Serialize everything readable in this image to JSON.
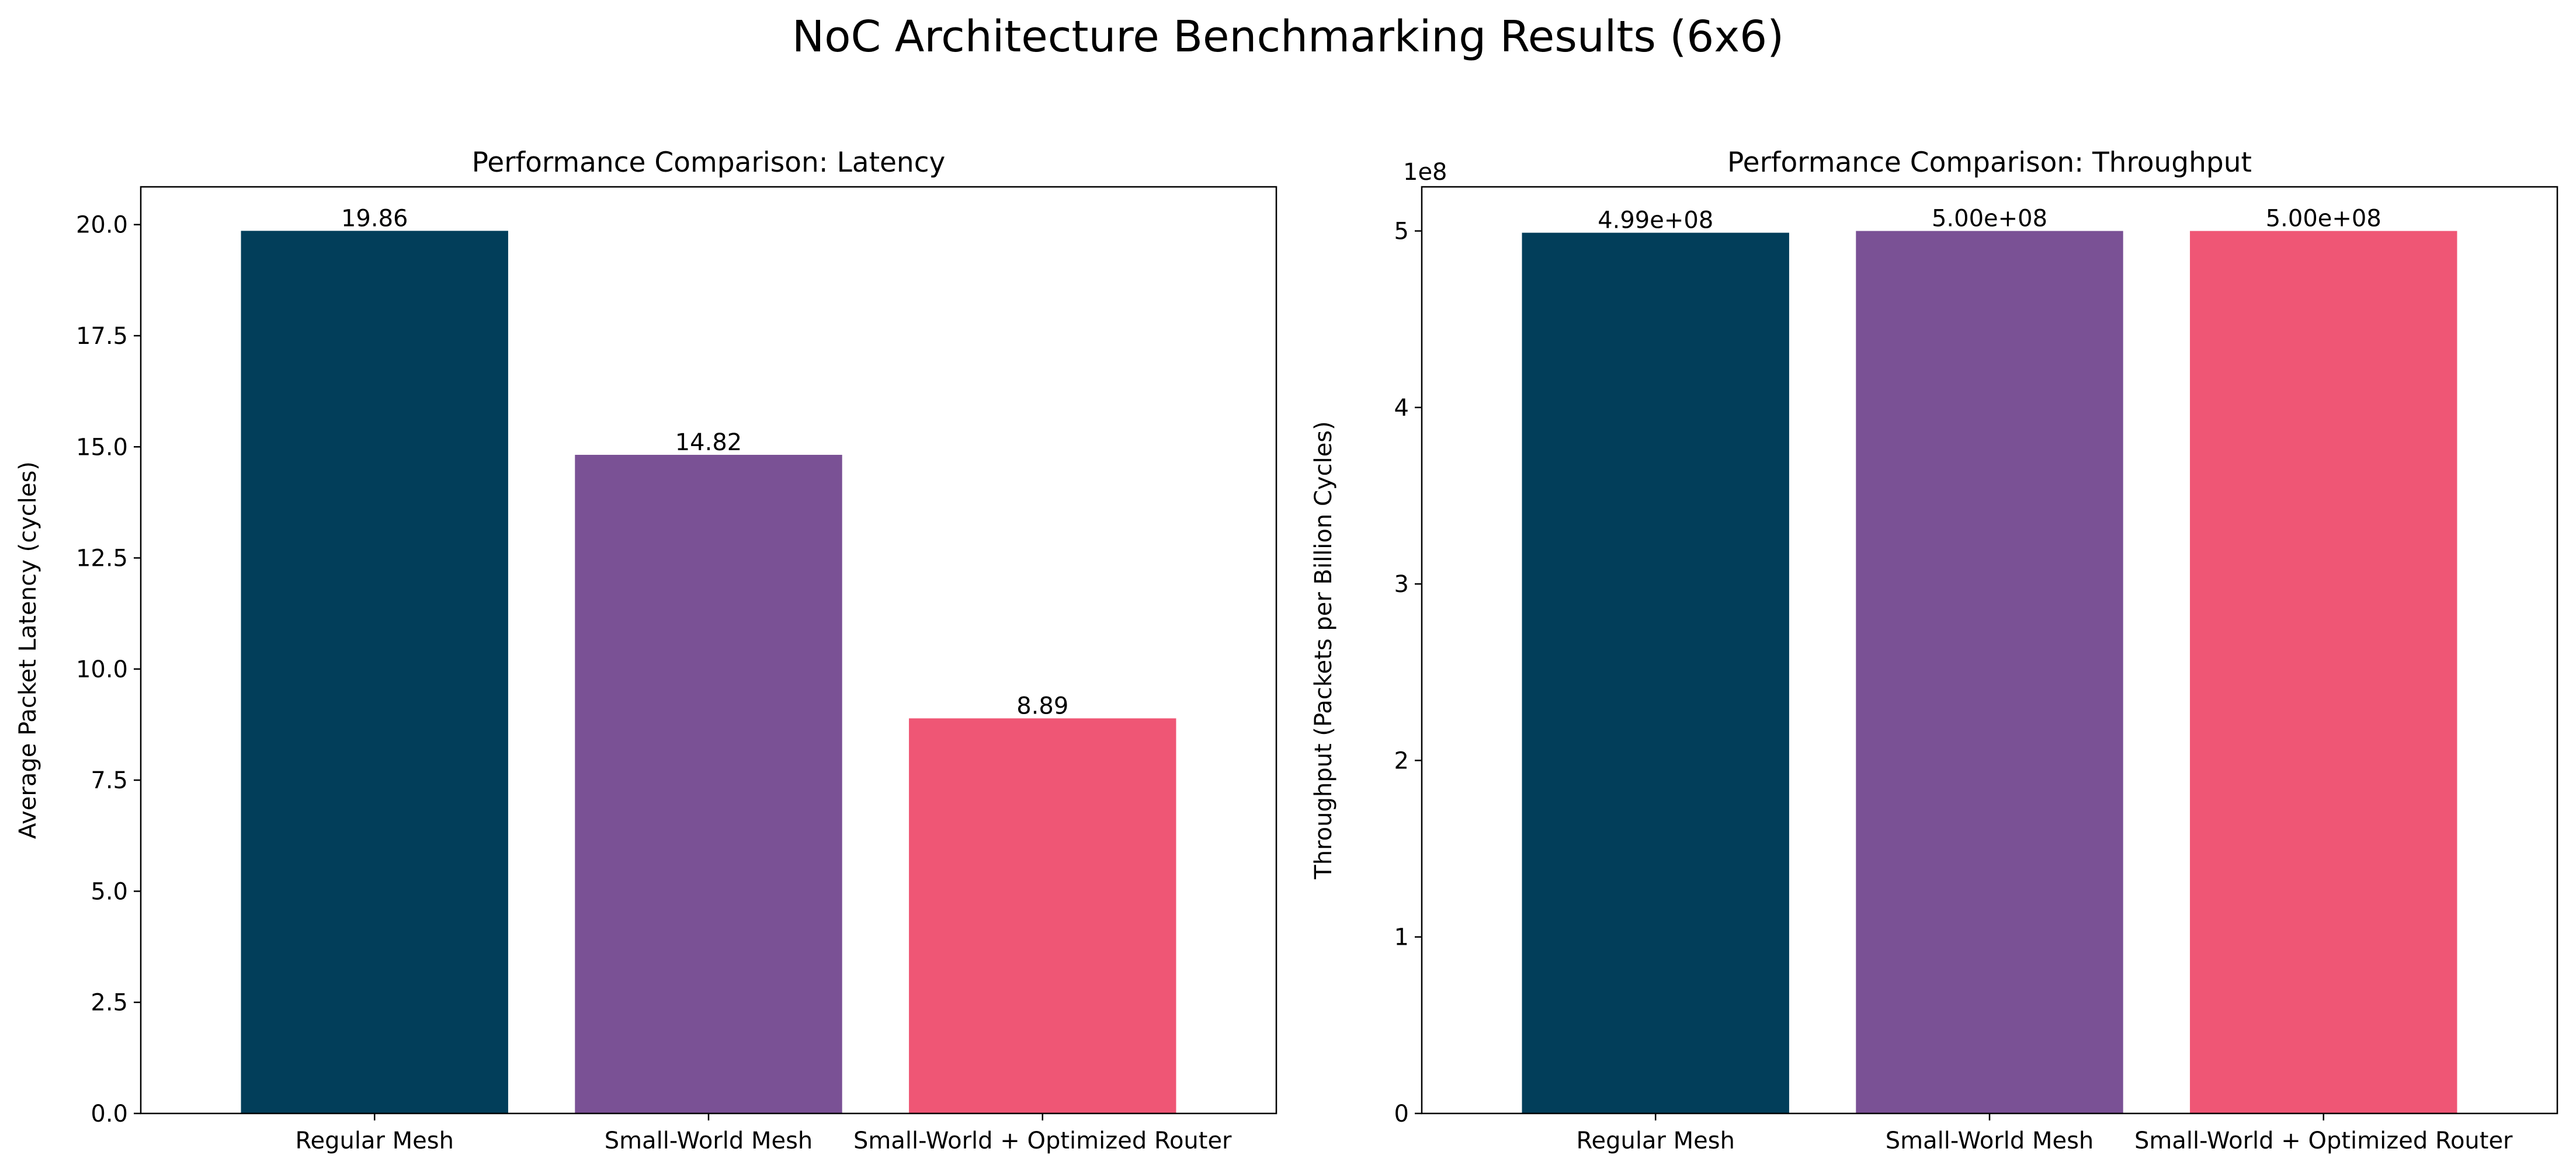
{
  "figure": {
    "suptitle": "NoC Architecture Benchmarking Results (6x6)"
  },
  "chart_data": [
    {
      "type": "bar",
      "title": "Performance Comparison: Latency",
      "xlabel": "",
      "ylabel": "Average Packet Latency (cycles)",
      "categories": [
        "Regular Mesh",
        "Small-World Mesh",
        "Small-World + Optimized Router"
      ],
      "values": [
        19.86,
        14.82,
        8.89
      ],
      "value_labels": [
        "19.86",
        "14.82",
        "8.89"
      ],
      "colors": [
        "#023e5a",
        "#7a5195",
        "#ef5675"
      ],
      "ylim": [
        0,
        20.85
      ],
      "yticks": [
        0,
        2.5,
        5,
        7.5,
        10,
        12.5,
        15,
        17.5,
        20
      ],
      "ytick_labels": [
        "0.0",
        "2.5",
        "5.0",
        "7.5",
        "10.0",
        "12.5",
        "15.0",
        "17.5",
        "20.0"
      ],
      "offset_label": "",
      "grid": false,
      "legend": "none"
    },
    {
      "type": "bar",
      "title": "Performance Comparison: Throughput",
      "xlabel": "",
      "ylabel": "Throughput (Packets per Billion Cycles)",
      "categories": [
        "Regular Mesh",
        "Small-World Mesh",
        "Small-World + Optimized Router"
      ],
      "values": [
        499000000,
        500000000,
        500000000
      ],
      "value_labels": [
        "4.99e+08",
        "5.00e+08",
        "5.00e+08"
      ],
      "colors": [
        "#023e5a",
        "#7a5195",
        "#ef5675"
      ],
      "ylim": [
        0,
        525000000
      ],
      "yticks": [
        0,
        100000000,
        200000000,
        300000000,
        400000000,
        500000000
      ],
      "ytick_labels": [
        "0",
        "1",
        "2",
        "3",
        "4",
        "5"
      ],
      "offset_label": "1e8",
      "grid": false,
      "legend": "none"
    }
  ]
}
